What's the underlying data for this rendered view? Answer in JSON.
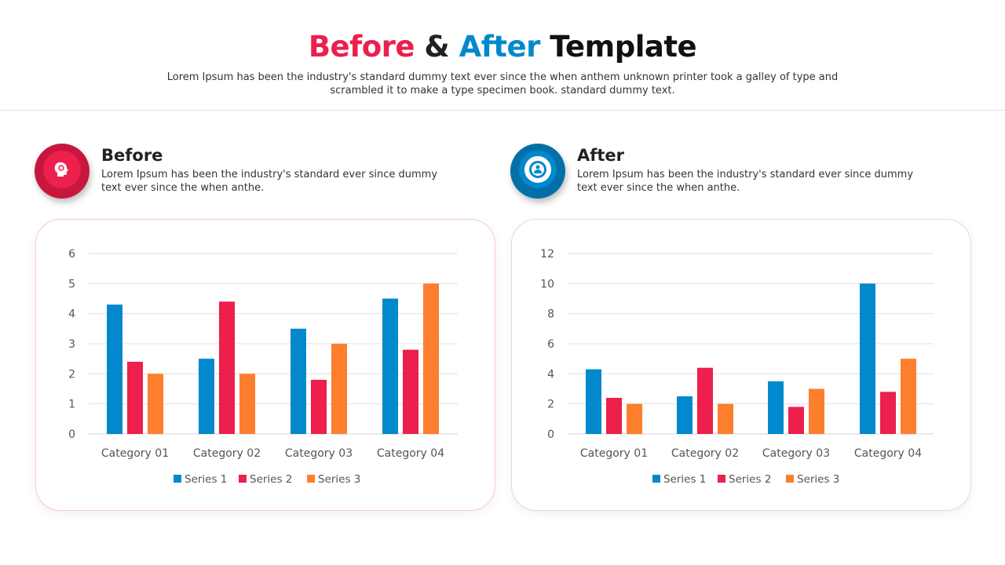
{
  "header": {
    "title_before": "Before",
    "title_amp": "&",
    "title_after": "After",
    "title_rest": "Template",
    "subtitle": "Lorem Ipsum has been the industry's standard dummy text ever since the when anthem unknown printer took a galley of type and scrambled it to make a type specimen book. standard dummy text."
  },
  "colors": {
    "red": "#EC1F4D",
    "blue": "#0288CC",
    "orange": "#FD7E2C"
  },
  "before": {
    "icon": "head-lightbulb-icon",
    "title": "Before",
    "desc": "Lorem Ipsum has been the industry's standard ever since dummy text ever since the when anthe."
  },
  "after": {
    "icon": "lifebuoy-person-icon",
    "title": "After",
    "desc": "Lorem Ipsum has been the industry's standard ever since dummy text ever since the when anthe."
  },
  "chart_data": [
    {
      "type": "bar",
      "categories": [
        "Category 01",
        "Category 02",
        "Category 03",
        "Category 04"
      ],
      "ylim": [
        0,
        6
      ],
      "yticks": [
        0,
        1,
        2,
        3,
        4,
        5,
        6
      ],
      "grid": true,
      "legend": "bottom",
      "series": [
        {
          "name": "Series 1",
          "color": "#0288CC",
          "values": [
            4.3,
            2.5,
            3.5,
            4.5
          ]
        },
        {
          "name": "Series 2",
          "color": "#EC1F4D",
          "values": [
            2.4,
            4.4,
            1.8,
            2.8
          ]
        },
        {
          "name": "Series 3",
          "color": "#FD7E2C",
          "values": [
            2,
            2,
            3,
            5
          ]
        }
      ]
    },
    {
      "type": "bar",
      "categories": [
        "Category 01",
        "Category 02",
        "Category 03",
        "Category 04"
      ],
      "ylim": [
        0,
        12
      ],
      "yticks": [
        0,
        2,
        4,
        6,
        8,
        10,
        12
      ],
      "grid": true,
      "legend": "bottom",
      "series": [
        {
          "name": "Series 1",
          "color": "#0288CC",
          "values": [
            4.3,
            2.5,
            3.5,
            10
          ]
        },
        {
          "name": "Series 2",
          "color": "#EC1F4D",
          "values": [
            2.4,
            4.4,
            1.8,
            2.8
          ]
        },
        {
          "name": "Series 3",
          "color": "#FD7E2C",
          "values": [
            2,
            2,
            3,
            5
          ]
        }
      ]
    }
  ]
}
